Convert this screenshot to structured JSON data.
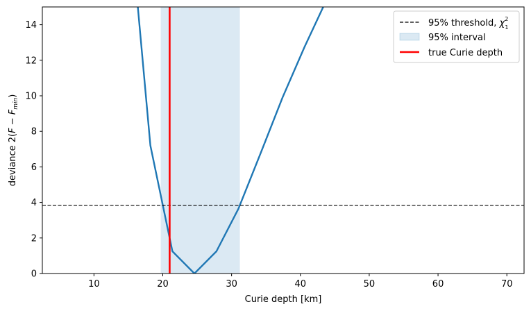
{
  "chart_data": {
    "type": "line",
    "xlabel": "Curie depth [km]",
    "ylabel_text": "deviance  2(",
    "ylabel_math": "F − F",
    "ylabel_sub": "min",
    "ylabel_close": ")",
    "xlim": [
      2.5,
      72.5
    ],
    "ylim": [
      0,
      15
    ],
    "xticks": [
      10,
      20,
      30,
      40,
      50,
      60,
      70
    ],
    "yticks": [
      0,
      2,
      4,
      6,
      8,
      10,
      12,
      14
    ],
    "grid": false,
    "legend_position": "top-right",
    "series": [
      {
        "style": "solid",
        "color": "#1f77b4",
        "x": [
          16.0,
          18.2,
          21.4,
          24.6,
          27.8,
          31.0,
          34.2,
          37.4,
          40.6,
          43.8
        ],
        "y": [
          16.6,
          7.2,
          1.25,
          0.0,
          1.25,
          3.65,
          6.75,
          9.9,
          12.75,
          15.4
        ]
      }
    ],
    "threshold": {
      "y": 3.84,
      "color": "#000000",
      "legend": "95% threshold, ",
      "legend_math": "χ",
      "legend_sup": "2",
      "legend_sub": "1"
    },
    "interval": {
      "x0": 19.7,
      "x1": 31.2,
      "color": "#1f77b4",
      "legend": "95% interval"
    },
    "true_depth": {
      "x": 21.0,
      "color": "#ff0000",
      "legend": "true Curie depth"
    }
  }
}
